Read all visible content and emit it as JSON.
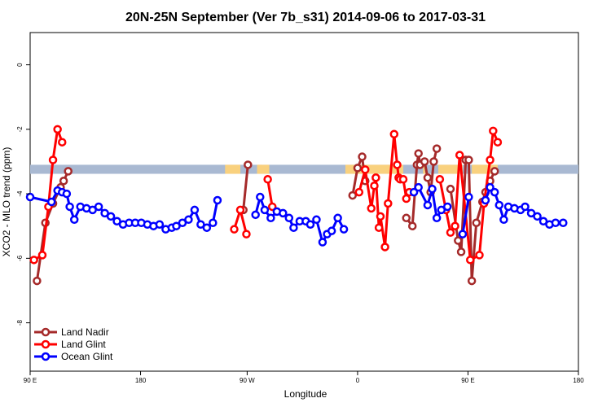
{
  "chart_data": {
    "type": "line",
    "title": "20N-25N September (Ver 7b_s31)   2014-09-06 to 2017-03-31",
    "xlabel": "Longitude",
    "ylabel": "XCO2 - MLO trend (ppm)",
    "xlim": [
      -90,
      270
    ],
    "ylim": [
      -9.5,
      1
    ],
    "x_ticks": [
      {
        "value": -90,
        "label": "90 E"
      },
      {
        "value": -17.5,
        "label": "180"
      },
      {
        "value": 52.5,
        "label": "90 W"
      },
      {
        "value": 125,
        "label": "0"
      },
      {
        "value": 197.5,
        "label": "90 E"
      },
      {
        "value": 270,
        "label": "180"
      }
    ],
    "y_ticks": [
      0,
      -2,
      -4,
      -6,
      -8
    ],
    "band": {
      "y_bottom": -3.38,
      "y_top": -3.1,
      "color": "#a9b9d2",
      "highlight": "#f9d17e"
    },
    "band_highlights": [
      [
        38,
        48
      ],
      [
        59,
        62
      ],
      [
        60,
        67
      ],
      [
        117,
        155
      ],
      [
        168,
        170
      ],
      [
        178,
        194
      ],
      [
        200,
        217
      ]
    ],
    "legend": {
      "position": "bottom-left",
      "entries": [
        {
          "label": "Land Nadir",
          "color": "#a52a2a"
        },
        {
          "label": "Land Glint",
          "color": "#ff0000"
        },
        {
          "label": "Ocean Glint",
          "color": "#0000ff"
        }
      ]
    },
    "series": [
      {
        "name": "Land Nadir",
        "color": "#a52a2a",
        "segments": [
          [
            [
              -85.5,
              -6.7
            ],
            [
              -80,
              -4.9
            ],
            [
              -75,
              -4.3
            ],
            [
              -70,
              -3.8
            ],
            [
              -68,
              -3.6
            ],
            [
              -65,
              -3.3
            ]
          ],
          [
            [
              50,
              -4.5
            ],
            [
              53,
              -3.1
            ]
          ],
          [
            [
              121.7,
              -4.05
            ],
            [
              125,
              -3.2
            ],
            [
              128,
              -2.85
            ],
            [
              130,
              -3.6
            ]
          ],
          [
            [
              157,
              -4.75
            ],
            [
              161,
              -5.0
            ],
            [
              164,
              -3.1
            ],
            [
              165,
              -2.75
            ],
            [
              166,
              -3.1
            ],
            [
              169,
              -3.0
            ],
            [
              171,
              -3.5
            ],
            [
              173,
              -3.95
            ],
            [
              175,
              -3.0
            ],
            [
              177,
              -2.6
            ]
          ],
          [
            [
              186,
              -3.85
            ],
            [
              191,
              -5.45
            ],
            [
              193,
              -5.8
            ],
            [
              196,
              -2.95
            ],
            [
              198,
              -2.95
            ],
            [
              200,
              -6.7
            ],
            [
              203,
              -4.9
            ],
            [
              207,
              -4.25
            ],
            [
              209,
              -3.95
            ],
            [
              212,
              -3.6
            ],
            [
              215,
              -3.3
            ]
          ]
        ]
      },
      {
        "name": "Land Glint",
        "color": "#ff0000",
        "segments": [
          [
            [
              -87.5,
              -6.05
            ],
            [
              -82,
              -5.9
            ],
            [
              -78,
              -4.4
            ],
            [
              -75,
              -2.95
            ],
            [
              -72,
              -2.0
            ],
            [
              -69,
              -2.4
            ]
          ],
          [
            [
              44,
              -5.1
            ],
            [
              48,
              -4.5
            ],
            [
              52,
              -5.25
            ]
          ],
          [
            [
              66,
              -3.55
            ],
            [
              69,
              -4.4
            ]
          ],
          [
            [
              126,
              -3.95
            ],
            [
              130,
              -3.25
            ],
            [
              134,
              -4.45
            ],
            [
              136,
              -3.75
            ],
            [
              137,
              -3.5
            ],
            [
              139,
              -5.05
            ],
            [
              140,
              -4.7
            ],
            [
              143,
              -5.65
            ],
            [
              145,
              -4.3
            ],
            [
              149,
              -2.15
            ],
            [
              151,
              -3.1
            ],
            [
              152,
              -3.5
            ],
            [
              153,
              -3.55
            ],
            [
              155,
              -3.55
            ],
            [
              157,
              -4.15
            ],
            [
              159,
              -3.95
            ]
          ],
          [
            [
              179,
              -3.55
            ],
            [
              183,
              -4.5
            ],
            [
              186,
              -5.2
            ],
            [
              189,
              -5.0
            ],
            [
              192,
              -2.8
            ],
            [
              199,
              -6.05
            ],
            [
              205,
              -5.9
            ],
            [
              208,
              -4.3
            ],
            [
              212,
              -2.95
            ],
            [
              214,
              -2.05
            ],
            [
              217,
              -2.4
            ]
          ]
        ]
      },
      {
        "name": "Ocean Glint",
        "color": "#0000ff",
        "segments": [
          [
            [
              -90,
              -4.1
            ],
            [
              -76,
              -4.25
            ],
            [
              -72,
              -3.9
            ],
            [
              -69,
              -3.95
            ],
            [
              -66,
              -4.0
            ],
            [
              -64,
              -4.4
            ],
            [
              -61,
              -4.8
            ],
            [
              -57,
              -4.4
            ],
            [
              -53,
              -4.45
            ],
            [
              -49,
              -4.5
            ],
            [
              -45,
              -4.4
            ],
            [
              -41,
              -4.6
            ],
            [
              -37,
              -4.7
            ],
            [
              -33,
              -4.85
            ],
            [
              -29,
              -4.95
            ],
            [
              -25,
              -4.9
            ],
            [
              -21,
              -4.9
            ],
            [
              -17,
              -4.9
            ],
            [
              -13,
              -4.95
            ],
            [
              -9,
              -5.0
            ],
            [
              -5,
              -4.95
            ],
            [
              -1,
              -5.1
            ],
            [
              3,
              -5.05
            ],
            [
              6,
              -5.0
            ],
            [
              10,
              -4.9
            ],
            [
              14,
              -4.8
            ],
            [
              18,
              -4.5
            ],
            [
              22,
              -4.95
            ],
            [
              26,
              -5.05
            ],
            [
              30,
              -4.9
            ],
            [
              33,
              -4.2
            ]
          ],
          [
            [
              58,
              -4.65
            ],
            [
              61,
              -4.1
            ],
            [
              64,
              -4.5
            ],
            [
              68,
              -4.75
            ],
            [
              72,
              -4.55
            ],
            [
              76,
              -4.6
            ],
            [
              80,
              -4.75
            ],
            [
              83,
              -5.05
            ],
            [
              87,
              -4.85
            ],
            [
              91,
              -4.85
            ],
            [
              94,
              -4.95
            ],
            [
              98,
              -4.8
            ],
            [
              102,
              -5.5
            ],
            [
              105,
              -5.25
            ],
            [
              108,
              -5.15
            ],
            [
              112,
              -4.75
            ],
            [
              116,
              -5.1
            ]
          ],
          [
            [
              162,
              -3.95
            ],
            [
              165,
              -3.8
            ],
            [
              171,
              -4.35
            ],
            [
              174,
              -3.85
            ],
            [
              177,
              -4.75
            ],
            [
              180,
              -4.5
            ],
            [
              184,
              -4.4
            ]
          ],
          [
            [
              194,
              -5.25
            ],
            [
              198,
              -4.1
            ]
          ],
          [
            [
              209,
              -4.2
            ],
            [
              212,
              -3.8
            ],
            [
              215,
              -3.95
            ],
            [
              218,
              -4.35
            ],
            [
              221,
              -4.8
            ],
            [
              224,
              -4.4
            ],
            [
              228,
              -4.45
            ],
            [
              232,
              -4.5
            ],
            [
              235,
              -4.4
            ],
            [
              239,
              -4.6
            ],
            [
              243,
              -4.7
            ],
            [
              247,
              -4.85
            ],
            [
              251,
              -4.95
            ],
            [
              255,
              -4.9
            ],
            [
              260,
              -4.9
            ]
          ]
        ]
      }
    ]
  }
}
